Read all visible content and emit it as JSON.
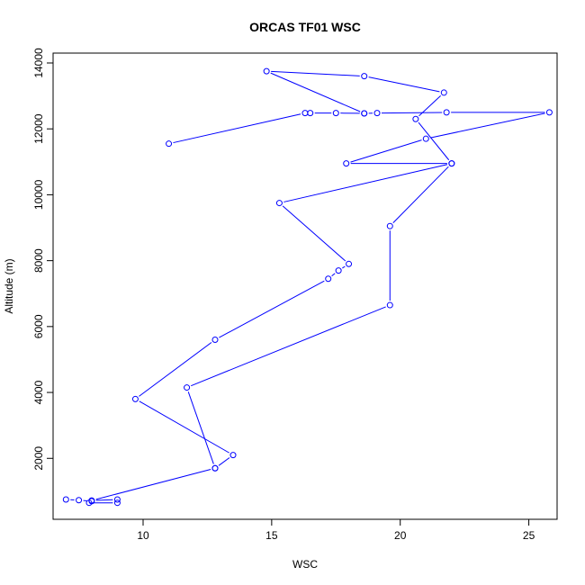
{
  "chart_data": {
    "type": "line",
    "title": "ORCAS TF01 WSC",
    "xlabel": "WSC",
    "ylabel": "Altitude (m)",
    "xlim": [
      6.5,
      26.1
    ],
    "ylim": [
      150,
      14300
    ],
    "xticks": [
      10,
      15,
      20,
      25
    ],
    "yticks": [
      2000,
      4000,
      6000,
      8000,
      10000,
      12000,
      14000
    ],
    "grid": false,
    "legend": "none",
    "series": [
      {
        "color": "#0000ff",
        "marker": "open-circle",
        "points": [
          {
            "x": 7.0,
            "y": 750
          },
          {
            "x": 7.5,
            "y": 730
          },
          {
            "x": 8.0,
            "y": 700
          },
          {
            "x": 7.9,
            "y": 650
          },
          {
            "x": 9.0,
            "y": 650
          },
          {
            "x": 9.0,
            "y": 750
          },
          {
            "x": 8.0,
            "y": 720
          },
          {
            "x": 12.8,
            "y": 1700
          },
          {
            "x": 13.5,
            "y": 2100
          },
          {
            "x": 9.7,
            "y": 3800
          },
          {
            "x": 12.8,
            "y": 5600
          },
          {
            "x": 17.2,
            "y": 7450
          },
          {
            "x": 17.6,
            "y": 7700
          },
          {
            "x": 18.0,
            "y": 7900
          },
          {
            "x": 15.3,
            "y": 9750
          },
          {
            "x": 22.0,
            "y": 10950
          },
          {
            "x": 17.9,
            "y": 10950
          },
          {
            "x": 21.0,
            "y": 11700
          },
          {
            "x": 25.8,
            "y": 12500
          },
          {
            "x": 21.8,
            "y": 12500
          },
          {
            "x": 19.1,
            "y": 12480
          },
          {
            "x": 18.6,
            "y": 12470
          },
          {
            "x": 17.5,
            "y": 12480
          },
          {
            "x": 16.5,
            "y": 12480
          },
          {
            "x": 16.3,
            "y": 12480
          },
          {
            "x": 11.0,
            "y": 11550
          }
        ]
      },
      {
        "color": "#0000ff",
        "marker": "open-circle",
        "points": [
          {
            "x": 12.8,
            "y": 1700
          },
          {
            "x": 11.7,
            "y": 4150
          },
          {
            "x": 19.6,
            "y": 6650
          },
          {
            "x": 19.6,
            "y": 9050
          },
          {
            "x": 22.0,
            "y": 10950
          },
          {
            "x": 20.6,
            "y": 12300
          },
          {
            "x": 21.7,
            "y": 13100
          },
          {
            "x": 18.6,
            "y": 13600
          },
          {
            "x": 14.8,
            "y": 13750
          },
          {
            "x": 18.6,
            "y": 12470
          }
        ]
      }
    ]
  }
}
